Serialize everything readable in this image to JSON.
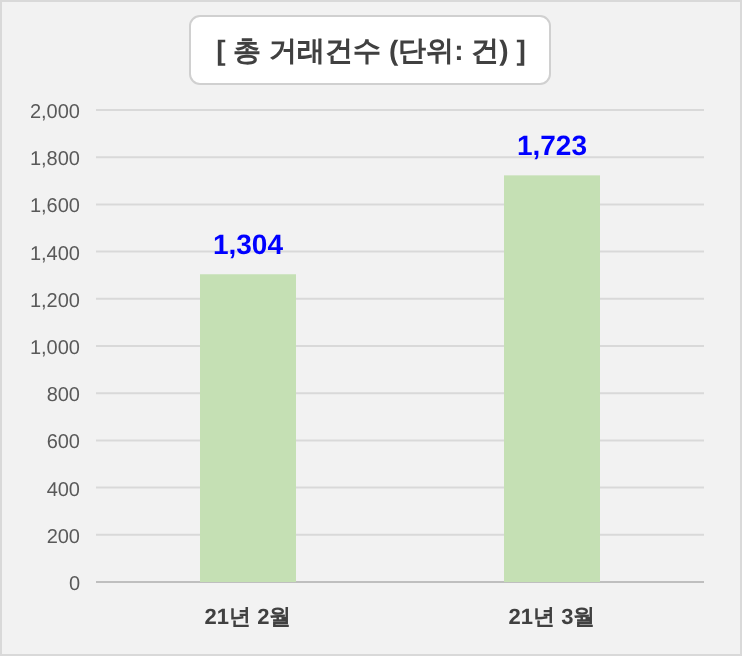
{
  "chart_data": {
    "type": "bar",
    "title": "[ 총 거래건수 (단위: 건) ]",
    "categories": [
      "21년 2월",
      "21년 3월"
    ],
    "values": [
      1304,
      1723
    ],
    "color": "#c5e0b4",
    "ylim": [
      0,
      2000
    ],
    "yticks": [
      {
        "value": 0,
        "label": "0"
      },
      {
        "value": 200,
        "label": "200"
      },
      {
        "value": 400,
        "label": "400"
      },
      {
        "value": 600,
        "label": "600"
      },
      {
        "value": 800,
        "label": "800"
      },
      {
        "value": 1000,
        "label": "1,000"
      },
      {
        "value": 1200,
        "label": "1,200"
      },
      {
        "value": 1400,
        "label": "1,400"
      },
      {
        "value": 1600,
        "label": "1,600"
      },
      {
        "value": 1800,
        "label": "1,800"
      },
      {
        "value": 2000,
        "label": "2,000"
      }
    ],
    "grid": "y",
    "value_labels": [
      "1,304",
      "1,723"
    ]
  }
}
